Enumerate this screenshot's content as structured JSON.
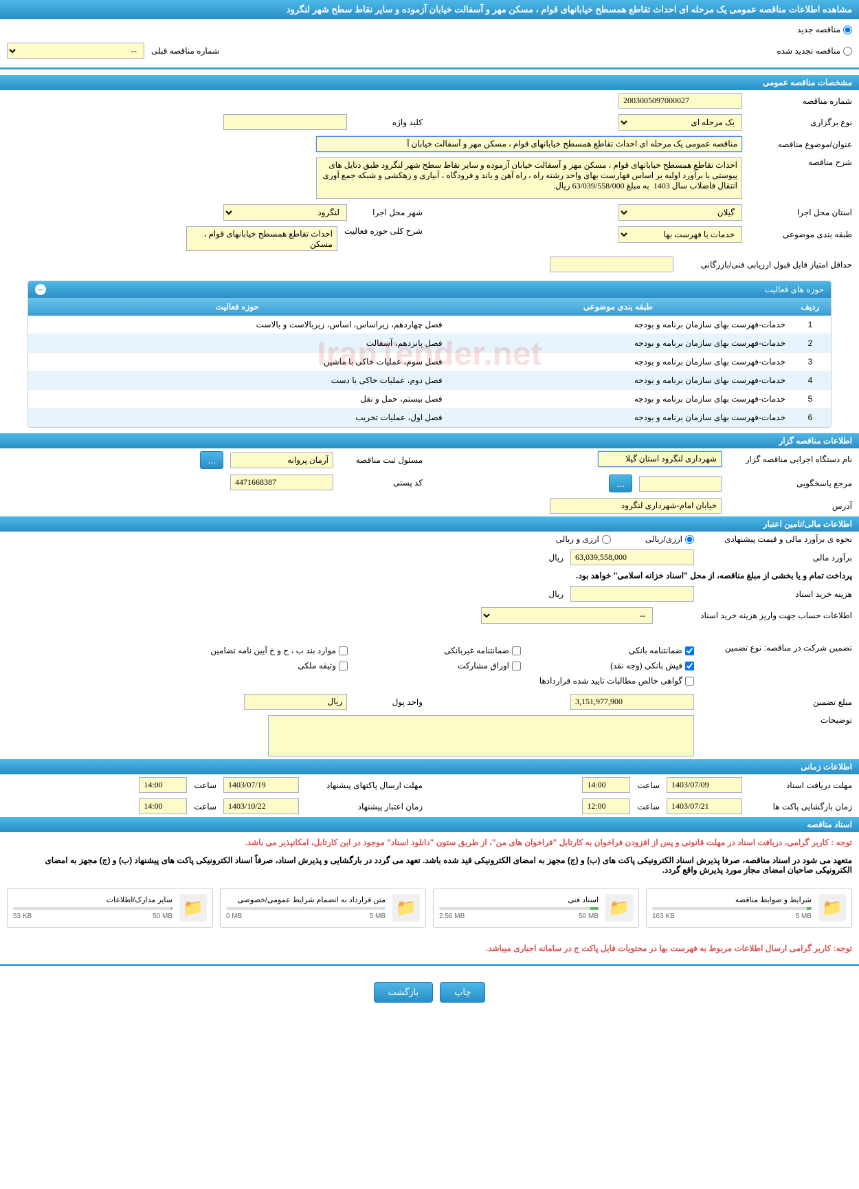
{
  "page_title": "مشاهده اطلاعات مناقصه عمومی یک مرحله ای احداث تقاطع همسطح خیابانهای قوام ، مسکن مهر و آسفالت خیابان آزموده و سایر نقاط سطح شهر لنگرود",
  "tender_type": {
    "new_label": "مناقصه جدید",
    "renewed_label": "مناقصه تجدید شده",
    "prev_number_label": "شماره مناقصه قبلی",
    "prev_number_placeholder": "--"
  },
  "sections": {
    "general": "مشخصات مناقصه عمومی",
    "activity_areas": "حوزه های فعالیت",
    "tenderer": "اطلاعات مناقصه گزار",
    "financial": "اطلاعات مالی/تامین اعتبار",
    "timing": "اطلاعات زمانی",
    "documents": "اسناد مناقصه"
  },
  "general": {
    "tender_number_label": "شماره مناقصه",
    "tender_number": "2003005097000027",
    "type_label": "نوع برگزاری",
    "type": "یک مرحله ای",
    "keyword_label": "کلید واژه",
    "keyword": "",
    "title_label": "عنوان/موضوع مناقصه",
    "title": "مناقصه عمومی یک مرحله ای احداث تقاطع همسطح خیابانهای قوام ، مسکن مهر و آسفالت خیابان آ",
    "description_label": "شرح مناقصه",
    "description": "احداث تقاطع همسطح خیابانهای قوام ، مسکن مهر و آسفالت خیابان آزموده و سایر نقاط سطح شهر لنگرود طبق دتایل های پیوستی با برآورد اولیه بر اساس فهارست بهای واحد رشته راه ، راه آهن و باند و فرودگاه ، آبیاری و زهکشی و شبکه جمع آوری انتقال فاضلاب سال 1403  به مبلغ 63/039/558/000 ریال.",
    "province_label": "استان محل اجرا",
    "province": "گیلان",
    "city_label": "شهر محل اجرا",
    "city": "لنگرود",
    "classification_label": "طبقه بندی موضوعی",
    "classification": "خدمات با فهرست بها",
    "activity_desc_label": "شرح کلی حوزه فعالیت",
    "activity_desc": "احداث تقاطع همسطح خیابانهای قوام ، مسکن",
    "min_score_label": "حداقل امتیاز قابل قبول ارزیابی فنی/بازرگانی",
    "min_score": ""
  },
  "activity_table": {
    "columns": {
      "row": "ردیف",
      "classification": "طبقه بندی موضوعی",
      "area": "حوزه فعالیت"
    },
    "classification_text": "خدمات-فهرست بهای سازمان برنامه و بودجه",
    "rows": [
      {
        "n": "1",
        "area": "فصل چهاردهم، زیراساس، اساس، زیربالاست  و بالاست"
      },
      {
        "n": "2",
        "area": "فصل پانزدهم، آسفالت"
      },
      {
        "n": "3",
        "area": "فصل سوم، عملیات خاکی با ماشین"
      },
      {
        "n": "4",
        "area": "فصل دوم، عملیات خاکی با دست"
      },
      {
        "n": "5",
        "area": "فصل بیستم، حمل و نقل"
      },
      {
        "n": "6",
        "area": "فصل اول، عملیات تخریب"
      }
    ]
  },
  "tenderer": {
    "org_label": "نام دستگاه اجرایی مناقصه گزار",
    "org": "شهرداری لنگرود استان گیلا",
    "registrar_label": "مسئول ثبت مناقصه",
    "registrar": "آرمان پروانه",
    "contact_label": "مرجع پاسخگویی",
    "contact": "",
    "postal_label": "کد پستی",
    "postal": "4471668387",
    "address_label": "آدرس",
    "address": "خیابان امام-شهرداری لنگرود",
    "btn": "..."
  },
  "financial": {
    "estimate_method_label": "نحوه ی برآورد مالی و قیمت پیشنهادی",
    "option_rial": "ارزی/ریالی",
    "option_foreign": "ارزی و ریالی",
    "estimate_label": "برآورد مالی",
    "estimate": "63,039,558,000",
    "currency": "ریال",
    "treasury_note": "پرداخت تمام و یا بخشی از مبلغ مناقصه، از محل \"اسناد خزانه اسلامی\" خواهد بود.",
    "doc_cost_label": "هزینه خرید اسناد",
    "doc_cost": "",
    "account_label": "اطلاعات حساب جهت واریز هزینه خرید اسناد",
    "account_placeholder": "--",
    "guarantee_type_label": "تضمین شرکت در مناقصه:   نوع تضمین",
    "guarantee_options": {
      "bank_guarantee": "ضمانتنامه بانکی",
      "nonbank_guarantee": "ضمانتنامه غیربانکی",
      "cases_bjh": "موارد بند ب ، ج و خ آیین نامه تضامین",
      "cash": "فیش بانکی (وجه نقد)",
      "securities": "اوراق مشارکت",
      "property": "وثیقه ملکی",
      "certificate": "گواهی خالص مطالبات تایید شده قراردادها"
    },
    "guarantee_amount_label": "مبلغ تضمین",
    "guarantee_amount": "3,151,977,900",
    "money_unit_label": "واحد پول",
    "money_unit": "ریال",
    "notes_label": "توضیحات",
    "notes": ""
  },
  "timing": {
    "doc_receive_label": "مهلت دریافت اسناد",
    "doc_receive_date": "1403/07/09",
    "doc_receive_time": "14:00",
    "bid_send_label": "مهلت ارسال پاکتهای پیشنهاد",
    "bid_send_date": "1403/07/19",
    "bid_send_time": "14:00",
    "open_label": "زمان بازگشایی پاکت ها",
    "open_date": "1403/07/21",
    "open_time": "12:00",
    "validity_label": "زمان اعتبار پیشنهاد",
    "validity_date": "1403/10/22",
    "validity_time": "14:00",
    "time_label": "ساعت"
  },
  "documents": {
    "warning1": "توجه : کاربر گرامی، دریافت اسناد در مهلت قانونی و پس از افزودن فراخوان به کارتابل \"فراخوان های من\"، از طریق ستون \"دانلود اسناد\" موجود در این کارتابل، امکانپذیر می باشد.",
    "info1": "متعهد می شود در اسناد مناقصه، صرفا پذیرش اسناد الکترونیکی پاکت های (ب) و (ج) مجهز به امضای الکترونیکی قید شده باشد. تعهد می گردد در بارگشایی و پذیرش اسناد، صرفاً اسناد الکترونیکی پاکت های پیشنهاد (ب) و (ج) مجهز به امضای الکترونیکی صاحبان امضای مجاز مورد پذیرش واقع گردد.",
    "files": [
      {
        "name": "شرایط و ضوابط مناقصه",
        "size": "163 KB",
        "max": "5 MB",
        "pct": 3
      },
      {
        "name": "اسناد فنی",
        "size": "2.56 MB",
        "max": "50 MB",
        "pct": 5
      },
      {
        "name": "متن قرارداد به انضمام شرایط عمومی/خصوصی",
        "size": "0 MB",
        "max": "5 MB",
        "pct": 0
      },
      {
        "name": "سایر مدارک/اطلاعات",
        "size": "53 KB",
        "max": "50 MB",
        "pct": 1
      }
    ],
    "warning2": "توجه: کاربر گرامی ارسال اطلاعات مربوط به فهرست بها در محتویات فایل پاکت ج در سامانه اجباری میباشد."
  },
  "buttons": {
    "print": "چاپ",
    "back": "بازگشت"
  }
}
